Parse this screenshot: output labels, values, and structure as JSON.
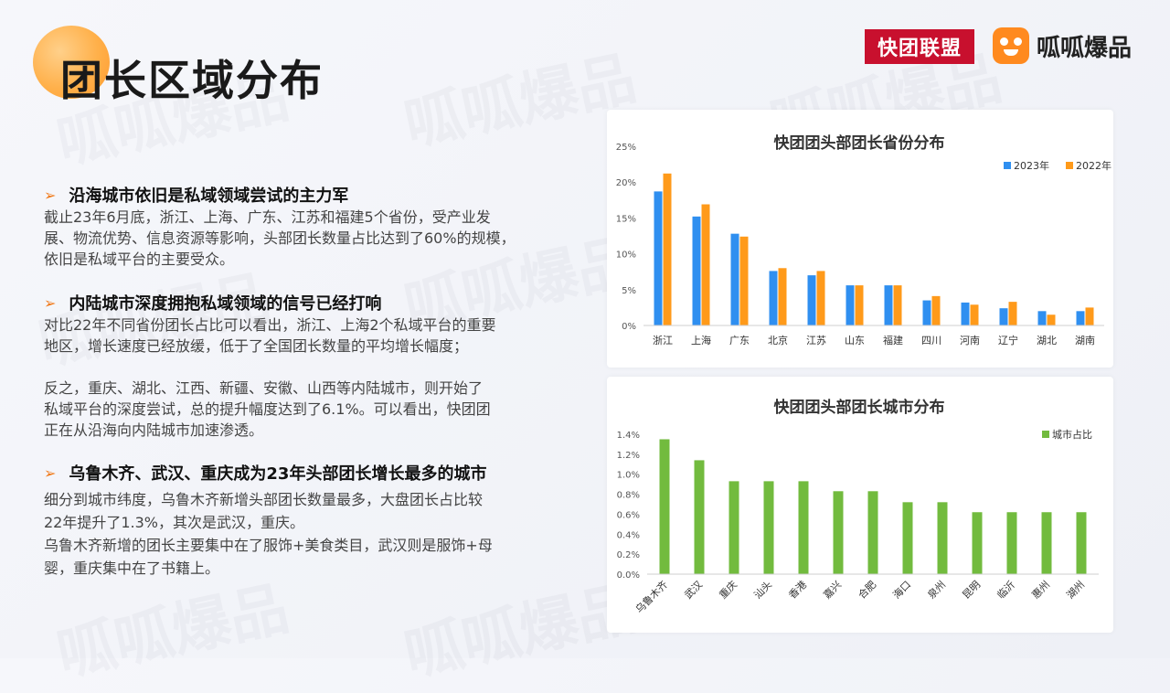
{
  "page": {
    "title": "团长区域分布",
    "brand_left": "快团联盟",
    "brand_right": "呱呱爆品",
    "watermark": "呱呱爆品"
  },
  "sections": [
    {
      "heading": "沿海城市依旧是私域领域尝试的主力军",
      "paragraphs": [
        [
          "截止23年6月底，浙江、上海、广东、江苏和福建5个省份，受产业发",
          "展、物流优势、信息资源等影响，头部团长数量占比达到了60%的规模，",
          "依旧是私域平台的主要受众。"
        ]
      ]
    },
    {
      "heading": "内陆城市深度拥抱私域领域的信号已经打响",
      "paragraphs": [
        [
          "对比22年不同省份团长占比可以看出，浙江、上海2个私域平台的重要",
          "地区，增长速度已经放缓，低于了全国团长数量的平均增长幅度；"
        ],
        [
          "反之，重庆、湖北、江西、新疆、安徽、山西等内陆城市，则开始了",
          "私域平台的深度尝试，总的提升幅度达到了6.1%。可以看出，快团团",
          "正在从沿海向内陆城市加速渗透。"
        ]
      ]
    },
    {
      "heading": "乌鲁木齐、武汉、重庆成为23年头部团长增长最多的城市",
      "paragraphs": [
        [
          "细分到城市纬度，乌鲁木齐新增头部团长数量最多，大盘团长占比较",
          "22年提升了1.3%，其次是武汉，重庆。",
          "乌鲁木齐新增的团长主要集中在了服饰+美食类目，武汉则是服饰+母",
          "婴，重庆集中在了书籍上。"
        ]
      ]
    }
  ],
  "chart_data": [
    {
      "type": "bar",
      "title": "快团团头部团长省份分布",
      "categories": [
        "浙江",
        "上海",
        "广东",
        "北京",
        "江苏",
        "山东",
        "福建",
        "四川",
        "河南",
        "辽宁",
        "湖北",
        "湖南"
      ],
      "series": [
        {
          "name": "2023年",
          "color": "#2f8ff0",
          "values": [
            18.7,
            15.2,
            12.8,
            7.6,
            7.0,
            5.6,
            5.6,
            3.5,
            3.2,
            2.4,
            2.0,
            2.0
          ]
        },
        {
          "name": "2022年",
          "color": "#ff9a1a",
          "values": [
            21.2,
            16.9,
            12.4,
            8.0,
            7.6,
            5.6,
            5.6,
            4.1,
            2.9,
            3.3,
            1.5,
            2.5
          ]
        }
      ],
      "ylim": [
        0,
        25
      ],
      "yticks": [
        "0%",
        "5%",
        "10%",
        "15%",
        "20%",
        "25%"
      ],
      "legend": "top-right",
      "grid": false
    },
    {
      "type": "bar",
      "title": "快团团头部团长城市分布",
      "categories": [
        "乌鲁木齐",
        "武汉",
        "重庆",
        "汕头",
        "香港",
        "嘉兴",
        "合肥",
        "海口",
        "泉州",
        "昆明",
        "临沂",
        "惠州",
        "湖州"
      ],
      "series": [
        {
          "name": "城市占比",
          "color": "#72bb3e",
          "values": [
            1.35,
            1.14,
            0.93,
            0.93,
            0.93,
            0.83,
            0.83,
            0.72,
            0.72,
            0.62,
            0.62,
            0.62,
            0.62
          ]
        }
      ],
      "ylim": [
        0,
        1.4
      ],
      "yticks": [
        "0.0%",
        "0.2%",
        "0.4%",
        "0.6%",
        "0.8%",
        "1.0%",
        "1.2%",
        "1.4%"
      ],
      "legend": "top-right",
      "grid": false
    }
  ]
}
